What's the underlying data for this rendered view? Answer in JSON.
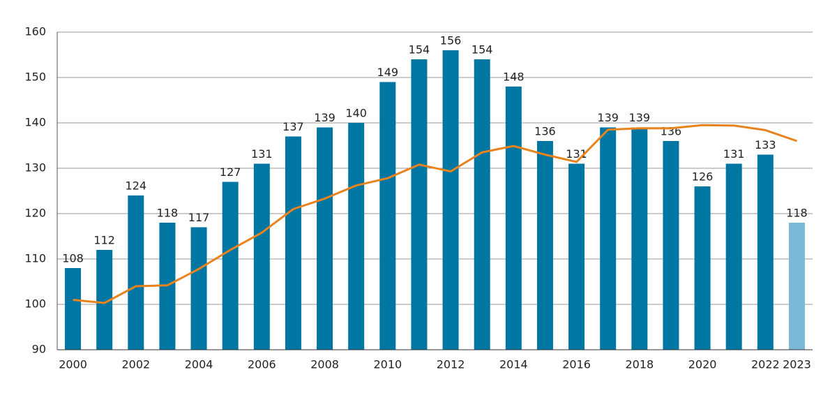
{
  "chart_data": {
    "type": "bar",
    "categories": [
      "2000",
      null,
      "2002",
      null,
      "2004",
      null,
      "2006",
      null,
      "2008",
      null,
      "2010",
      null,
      "2012",
      null,
      "2014",
      null,
      "2016",
      null,
      "2018",
      null,
      "2020",
      null,
      "2022",
      "2023"
    ],
    "values": [
      108,
      112,
      124,
      118,
      117,
      127,
      131,
      137,
      139,
      140,
      149,
      154,
      156,
      154,
      148,
      136,
      131,
      139,
      139,
      136,
      126,
      131,
      133,
      118
    ],
    "colors": [
      "#0077a3",
      "#0077a3",
      "#0077a3",
      "#0077a3",
      "#0077a3",
      "#0077a3",
      "#0077a3",
      "#0077a3",
      "#0077a3",
      "#0077a3",
      "#0077a3",
      "#0077a3",
      "#0077a3",
      "#0077a3",
      "#0077a3",
      "#0077a3",
      "#0077a3",
      "#0077a3",
      "#0077a3",
      "#0077a3",
      "#0077a3",
      "#0077a3",
      "#0077a3",
      "#7bb9d6"
    ],
    "line": {
      "type": "line",
      "color": "#e8831e",
      "values": [
        101,
        100.3,
        104,
        104.2,
        107.8,
        112,
        115.8,
        121,
        123.3,
        126.2,
        127.8,
        130.8,
        129.3,
        133.5,
        134.9,
        133,
        131.4,
        138.5,
        138.8,
        138.8,
        139.5,
        139.4,
        138.4,
        136
      ]
    },
    "ylim": [
      90,
      160
    ],
    "yticks": [
      90,
      100,
      110,
      120,
      130,
      140,
      150,
      160
    ],
    "grid": true
  }
}
